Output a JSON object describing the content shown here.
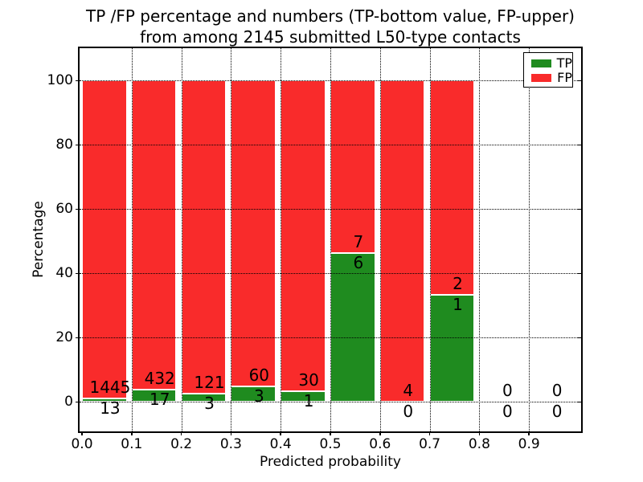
{
  "chart_data": {
    "type": "bar",
    "stacked": true,
    "title_line1": "TP /FP percentage and numbers (TP-bottom value, FP-upper)",
    "title_line2": "from among 2145 submitted L50-type contacts",
    "xlabel": "Predicted probability",
    "ylabel": "Percentage",
    "x_tick_labels": [
      "0.0",
      "0.1",
      "0.2",
      "0.3",
      "0.4",
      "0.5",
      "0.6",
      "0.7",
      "0.8",
      "0.9"
    ],
    "y_tick_values": [
      0,
      20,
      40,
      60,
      80,
      100
    ],
    "ylim": [
      -9.25,
      110
    ],
    "xlim": [
      -0.005,
      1.01
    ],
    "bin_width": 0.1,
    "bar_width": 0.09,
    "grid_style": "dotted",
    "legend_position": "upper-right",
    "legend": [
      {
        "label": "TP",
        "color": "#1F8B1F"
      },
      {
        "label": "FP",
        "color": "#F92B2B"
      }
    ],
    "bins": [
      {
        "x": 0.0,
        "tp": 13,
        "fp": 1445
      },
      {
        "x": 0.1,
        "tp": 17,
        "fp": 432
      },
      {
        "x": 0.2,
        "tp": 3,
        "fp": 121
      },
      {
        "x": 0.3,
        "tp": 3,
        "fp": 60
      },
      {
        "x": 0.4,
        "tp": 1,
        "fp": 30
      },
      {
        "x": 0.5,
        "tp": 6,
        "fp": 7
      },
      {
        "x": 0.6,
        "tp": 0,
        "fp": 4
      },
      {
        "x": 0.7,
        "tp": 1,
        "fp": 2
      },
      {
        "x": 0.8,
        "tp": 0,
        "fp": 0
      },
      {
        "x": 0.9,
        "tp": 0,
        "fp": 0
      }
    ]
  }
}
